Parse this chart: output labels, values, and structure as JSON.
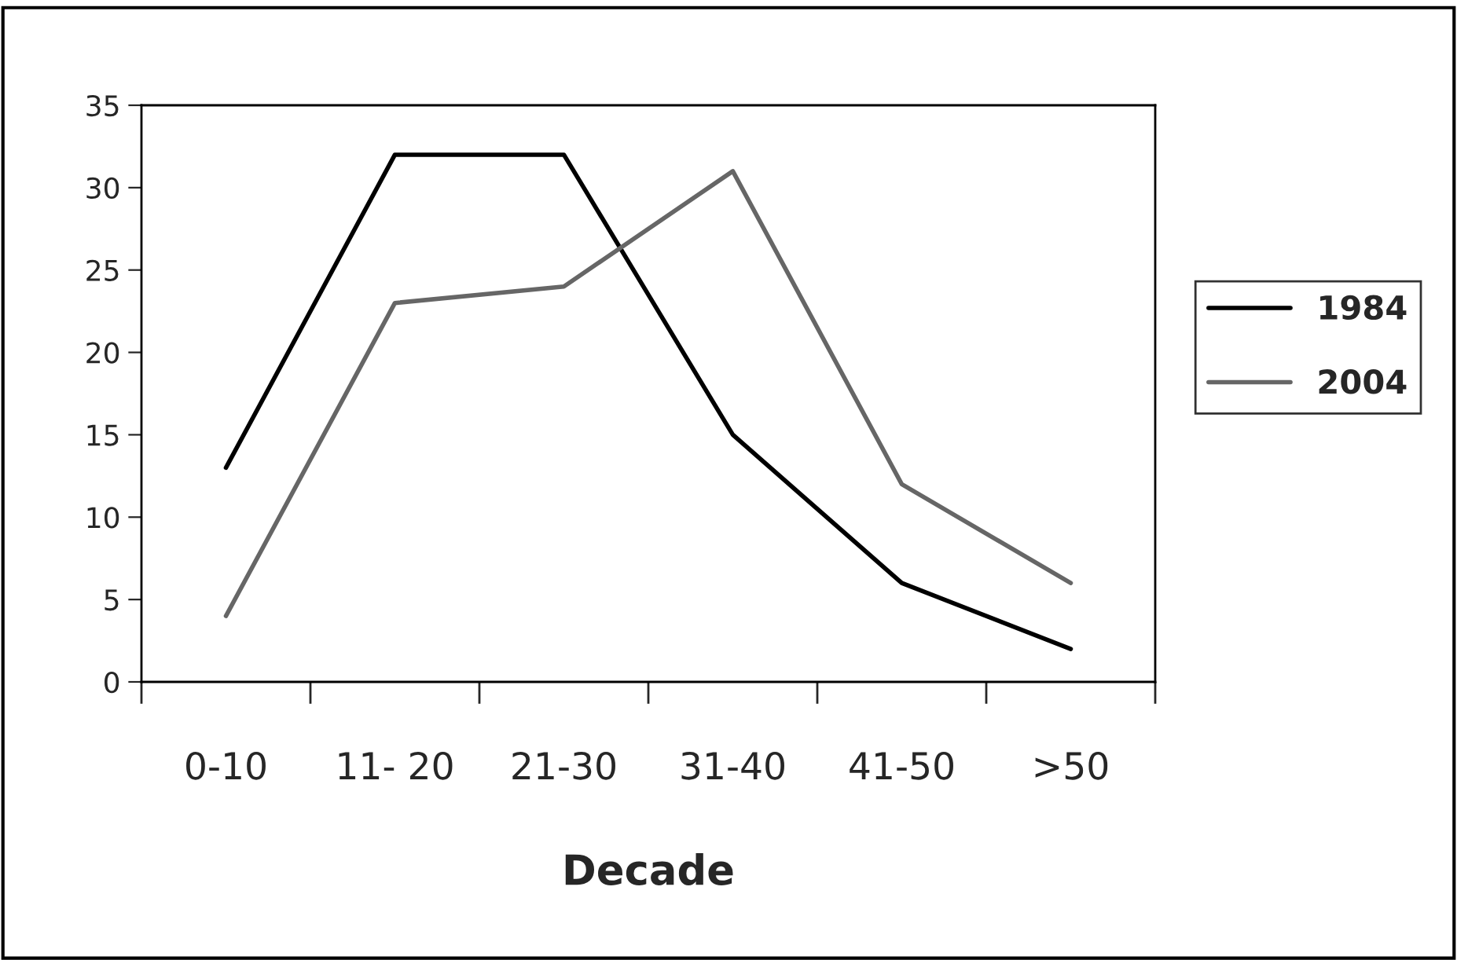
{
  "chart_data": {
    "type": "line",
    "xlabel": "Decade",
    "categories": [
      "0-10",
      "11- 20",
      "21-30",
      "31-40",
      "41-50",
      ">50"
    ],
    "series": [
      {
        "name": "1984",
        "color": "#000000",
        "values": [
          13,
          32,
          32,
          15,
          6,
          2
        ]
      },
      {
        "name": "2004",
        "color": "#666666",
        "values": [
          4,
          23,
          24,
          31,
          12,
          6
        ]
      }
    ],
    "ylim": [
      0,
      35
    ],
    "yticks": [
      0,
      5,
      10,
      15,
      20,
      25,
      30,
      35
    ],
    "grid": false,
    "legend": "right",
    "marker": "none",
    "line_style": "solid"
  }
}
